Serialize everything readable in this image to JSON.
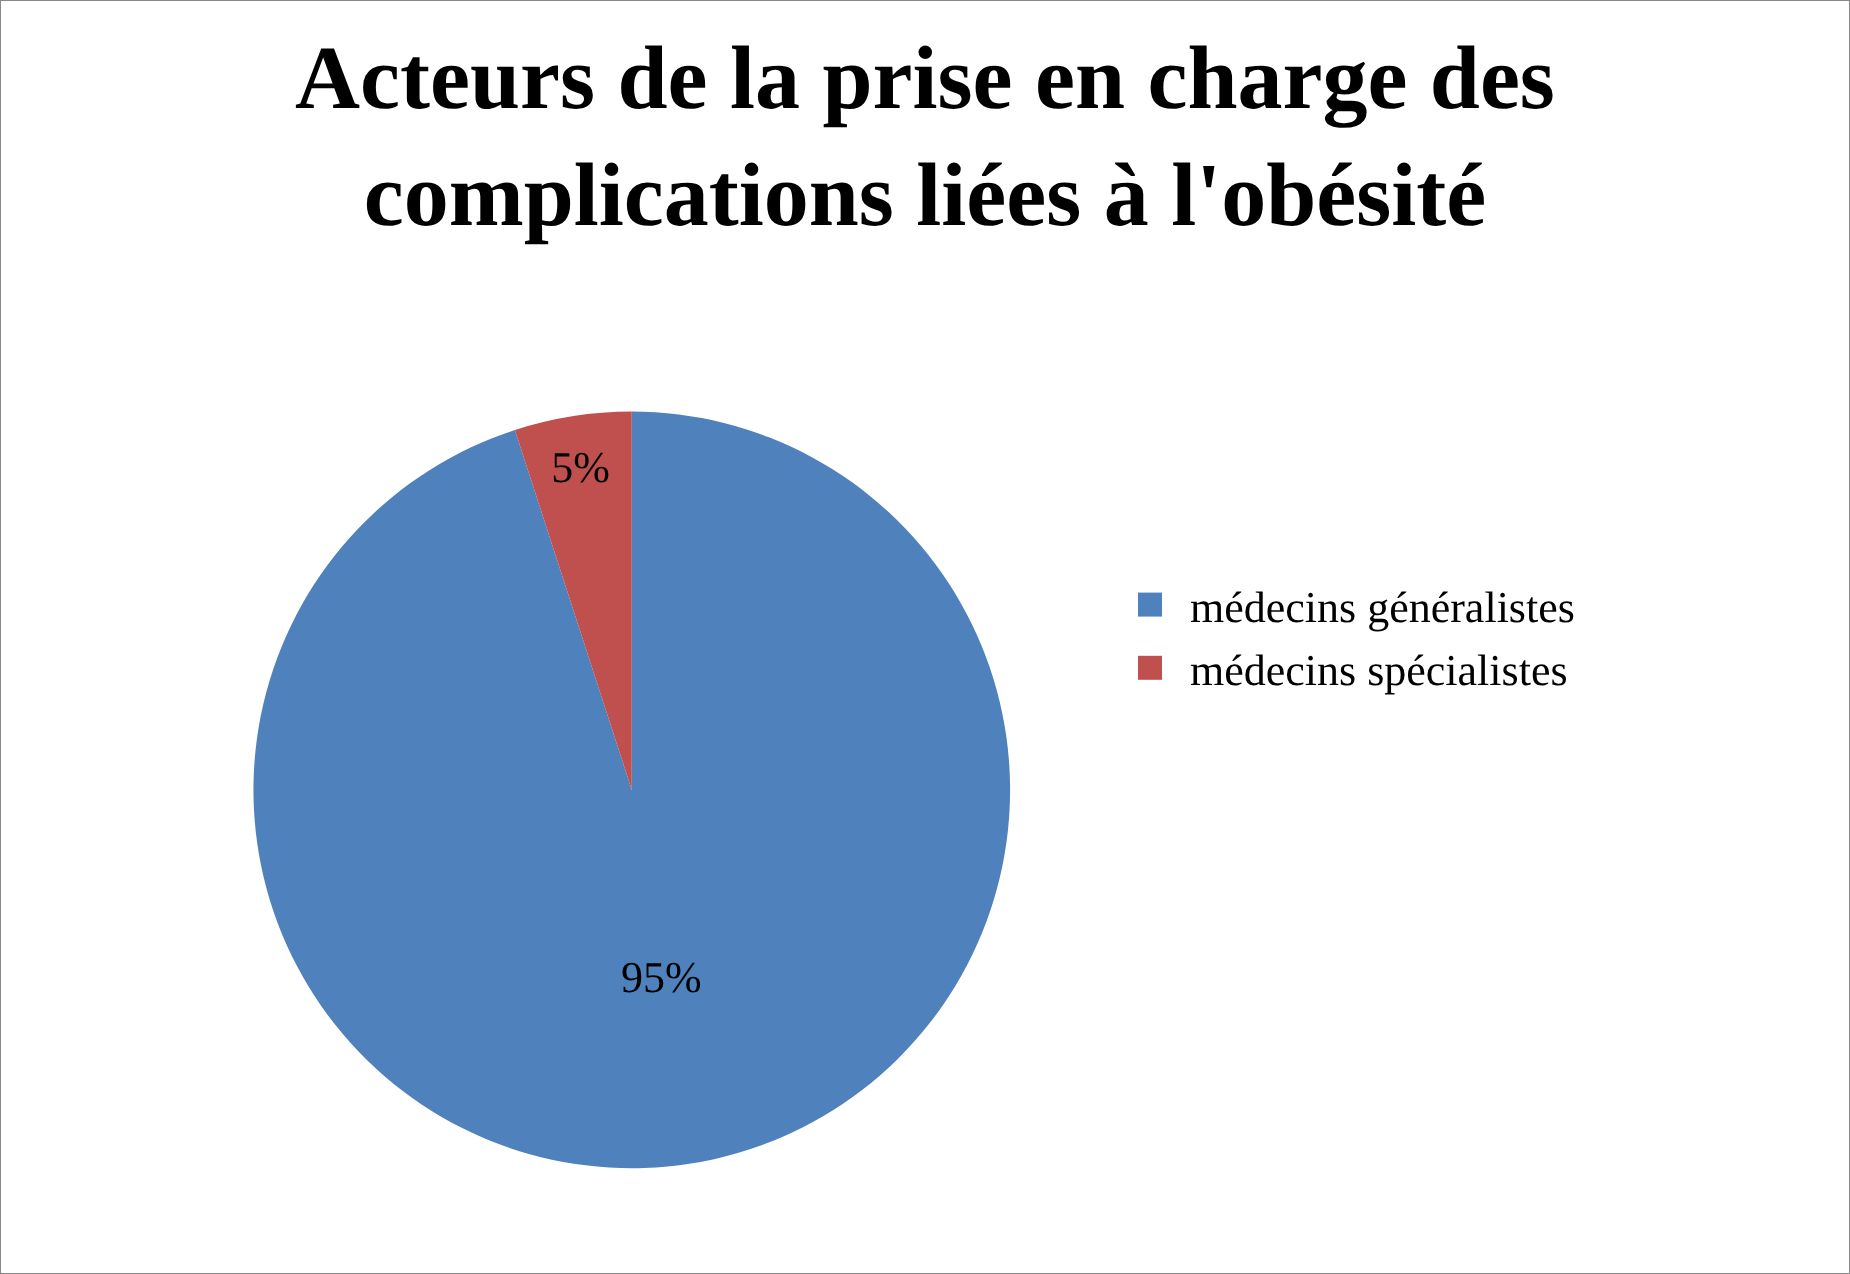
{
  "chart_data": {
    "type": "pie",
    "title": "Acteurs de la prise en charge des complications liées à l'obésité",
    "categories": [
      "médecins généralistes",
      "médecins spécialistes"
    ],
    "values": [
      95,
      5
    ],
    "colors": [
      "#4f81bd",
      "#c0504d"
    ],
    "value_labels": [
      "95%",
      "5%"
    ],
    "legend": "right"
  }
}
